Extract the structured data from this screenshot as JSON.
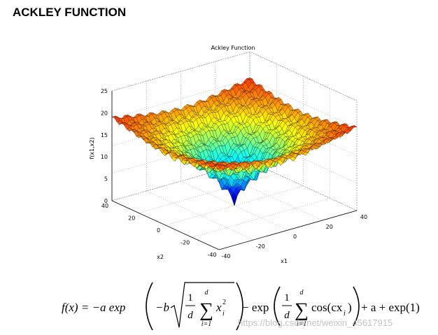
{
  "header": {
    "title": "ACKLEY FUNCTION"
  },
  "figure": {
    "title": "Ackley Function",
    "z_label": "f(x1,x2)",
    "x1_label": "x1",
    "x2_label": "x2",
    "z_ticks": [
      "25",
      "20",
      "15",
      "10",
      "5",
      "0"
    ],
    "x2_ticks": [
      "40",
      "20",
      "0",
      "-20",
      "-40"
    ],
    "x1_ticks": [
      "-40",
      "-20",
      "0",
      "20",
      "40"
    ]
  },
  "formula": {
    "lhs": "f(x) = −a exp",
    "neg_b": "−b",
    "frac_num": "1",
    "frac_den": "d",
    "sum_top": "d",
    "sum": "∑",
    "sum_bottom": "i=1",
    "x": "x",
    "x_sub": "i",
    "x_sup": "2",
    "minus_exp": "− exp",
    "cos": "cos(cx",
    "cos_sub": "i",
    "cos_close": ")",
    "tail": "+ a + exp(1)"
  },
  "watermark": "https://blog.csdn.net/weixin_45617915"
}
